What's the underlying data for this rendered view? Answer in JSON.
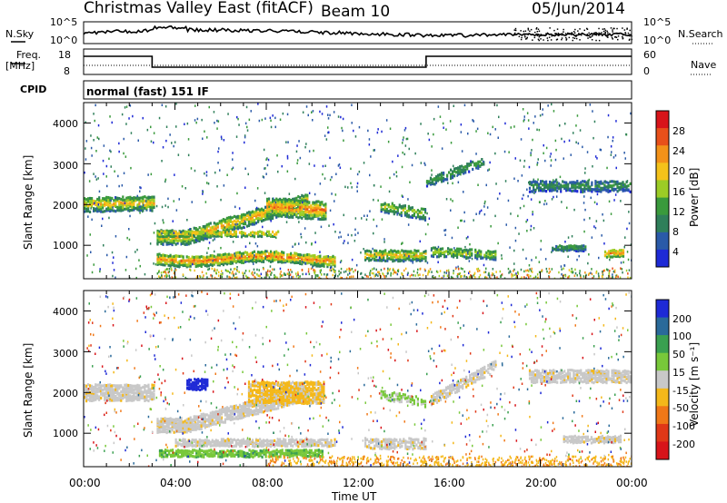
{
  "header": {
    "station": "Christmas Valley East (fitACF)",
    "beam": "Beam 10",
    "date": "05/Jun/2014"
  },
  "noise_panel": {
    "left_label": "N.Sky",
    "right_label": "N.Search",
    "left_ticks": [
      "10^5",
      "10^0"
    ],
    "right_ticks": [
      "10^5",
      "10^0"
    ]
  },
  "freq_panel": {
    "left_label_1": "Freq.",
    "left_label_2": "[MHz]",
    "left_ticks": [
      "18",
      "8"
    ],
    "right_label": "Nave",
    "right_ticks": [
      "60",
      "0"
    ]
  },
  "cpid_panel": {
    "label": "CPID",
    "mode": "normal (fast) 151 IF"
  },
  "chart_data": [
    {
      "type": "heatmap",
      "title": "",
      "xlabel": "",
      "ylabel": "Slant Range [km]",
      "yticks": [
        "1000",
        "2000",
        "3000",
        "4000"
      ],
      "ylim": [
        180,
        4500
      ],
      "xlim_hours": [
        0,
        24
      ],
      "colorbar": {
        "label": "Power [dB]",
        "ticks": [
          "4",
          "8",
          "12",
          "16",
          "20",
          "24",
          "28"
        ],
        "range": [
          0,
          30
        ],
        "colors": [
          "#1e2ad6",
          "#2a5aa8",
          "#2f7f5a",
          "#3a9a3c",
          "#9ccc26",
          "#f4c21a",
          "#f39219",
          "#e8501a",
          "#d8141a"
        ]
      },
      "features": [
        {
          "name": "early band",
          "t": [
            0,
            3.1
          ],
          "range_km": [
            1900,
            2300
          ],
          "power_db": 18
        },
        {
          "name": "rising arc",
          "t": [
            3.2,
            9.5
          ],
          "range_km": [
            1200,
            2100
          ],
          "power_db": 22
        },
        {
          "name": "lower band",
          "t": [
            3.2,
            11.0
          ],
          "range_km": [
            700,
            900
          ],
          "power_db": 24
        },
        {
          "name": "peak arc",
          "t": [
            8.0,
            10.6
          ],
          "range_km": [
            1700,
            2300
          ],
          "power_db": 25
        },
        {
          "name": "afternoon patches",
          "t": [
            12.5,
            17.5
          ],
          "range_km": [
            700,
            1000
          ],
          "power_db": 20
        },
        {
          "name": "evening band",
          "t": [
            19.5,
            24
          ],
          "range_km": [
            2200,
            2800
          ],
          "power_db": 14
        }
      ]
    },
    {
      "type": "heatmap",
      "title": "",
      "xlabel": "Time UT",
      "ylabel": "Slant Range [km]",
      "yticks": [
        "1000",
        "2000",
        "3000",
        "4000"
      ],
      "xticks": [
        "00:00",
        "04:00",
        "08:00",
        "12:00",
        "16:00",
        "20:00",
        "00:00"
      ],
      "ylim": [
        180,
        4500
      ],
      "xlim_hours": [
        0,
        24
      ],
      "colorbar": {
        "label": "Velocity [m s⁻¹]",
        "ticks": [
          "200",
          "100",
          "50",
          "15",
          "-15",
          "-50",
          "-100",
          "-200"
        ],
        "colors": [
          "#1e2ad6",
          "#2a6a9a",
          "#3aa050",
          "#78c83a",
          "#c8c8c8",
          "#f4b81a",
          "#f07818",
          "#e03818",
          "#d8141a"
        ]
      },
      "features": [
        {
          "name": "ground scatter",
          "t": [
            0,
            24
          ],
          "velocity": 0
        },
        {
          "name": "blue patch",
          "t": [
            4.5,
            5.4
          ],
          "range_km": [
            2100,
            2500
          ],
          "velocity": 200
        },
        {
          "name": "orange arc",
          "t": [
            7.2,
            10.5
          ],
          "range_km": [
            1700,
            2600
          ],
          "velocity": -50
        },
        {
          "name": "green lower band",
          "t": [
            3.3,
            10.5
          ],
          "range_km": [
            400,
            700
          ],
          "velocity": 50
        }
      ]
    }
  ]
}
